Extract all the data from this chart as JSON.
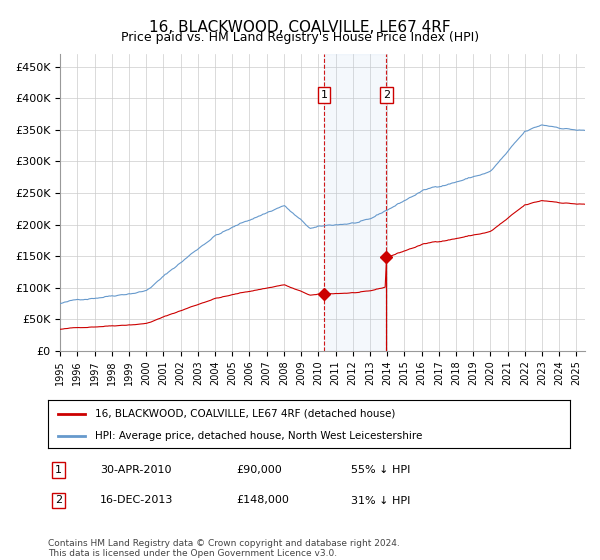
{
  "title": "16, BLACKWOOD, COALVILLE, LE67 4RF",
  "subtitle": "Price paid vs. HM Land Registry's House Price Index (HPI)",
  "legend_line1": "16, BLACKWOOD, COALVILLE, LE67 4RF (detached house)",
  "legend_line2": "HPI: Average price, detached house, North West Leicestershire",
  "footer": "Contains HM Land Registry data © Crown copyright and database right 2024.\nThis data is licensed under the Open Government Licence v3.0.",
  "hpi_color": "#6699cc",
  "property_color": "#cc0000",
  "sale1_date_label": "30-APR-2010",
  "sale1_price": 90000,
  "sale1_pct": "55% ↓ HPI",
  "sale2_date_label": "16-DEC-2013",
  "sale2_price": 148000,
  "sale2_pct": "31% ↓ HPI",
  "sale1_year": 2010.33,
  "sale2_year": 2013.96,
  "ylim": [
    0,
    470000
  ],
  "xlabel_years": [
    "1995",
    "1996",
    "1997",
    "1998",
    "1999",
    "2000",
    "2001",
    "2002",
    "2003",
    "2004",
    "2005",
    "2006",
    "2007",
    "2008",
    "2009",
    "2010",
    "2011",
    "2012",
    "2013",
    "2014",
    "2015",
    "2016",
    "2017",
    "2018",
    "2019",
    "2020",
    "2021",
    "2022",
    "2023",
    "2024",
    "2025"
  ],
  "yticks": [
    0,
    50000,
    100000,
    150000,
    200000,
    250000,
    300000,
    350000,
    400000,
    450000
  ],
  "ytick_labels": [
    "£0",
    "£50K",
    "£100K",
    "£150K",
    "£200K",
    "£250K",
    "£300K",
    "£350K",
    "£400K",
    "£450K"
  ]
}
